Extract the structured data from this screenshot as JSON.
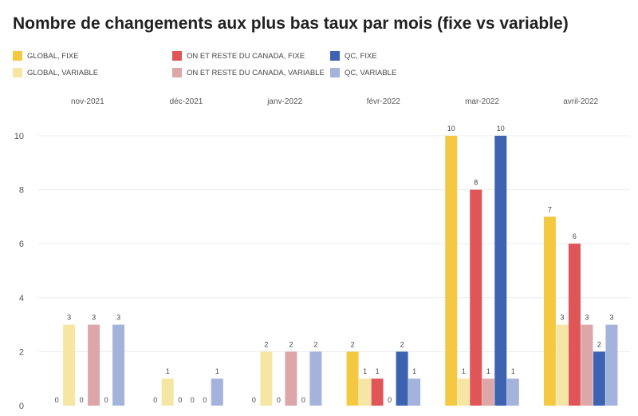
{
  "chart_data": {
    "type": "bar",
    "title": "Nombre de changements aux plus bas taux par mois (fixe vs variable)",
    "categories": [
      "nov-2021",
      "déc-2021",
      "janv-2022",
      "févr-2022",
      "mar-2022",
      "avril-2022"
    ],
    "series": [
      {
        "name": "GLOBAL, FIXE",
        "color": "#f5c842",
        "values": [
          0,
          0,
          0,
          2,
          10,
          7
        ]
      },
      {
        "name": "GLOBAL, VARIABLE",
        "color": "#f6e6a4",
        "values": [
          3,
          1,
          2,
          1,
          1,
          3
        ]
      },
      {
        "name": "ON ET RESTE DU CANADA, FIXE",
        "color": "#e05557",
        "values": [
          0,
          0,
          0,
          1,
          8,
          6
        ]
      },
      {
        "name": "ON ET RESTE DU CANADA, VARIABLE",
        "color": "#dda6a8",
        "values": [
          3,
          0,
          2,
          0,
          1,
          3
        ]
      },
      {
        "name": "QC, FIXE",
        "color": "#3d63b0",
        "values": [
          0,
          0,
          0,
          2,
          10,
          2
        ]
      },
      {
        "name": "QC, VARIABLE",
        "color": "#a3b3dc",
        "values": [
          3,
          1,
          2,
          1,
          1,
          3
        ]
      }
    ],
    "yticks": [
      "0",
      "2",
      "4",
      "6",
      "8",
      "10"
    ],
    "ylim": [
      0,
      10
    ],
    "grid": true,
    "legend_position": "top"
  }
}
